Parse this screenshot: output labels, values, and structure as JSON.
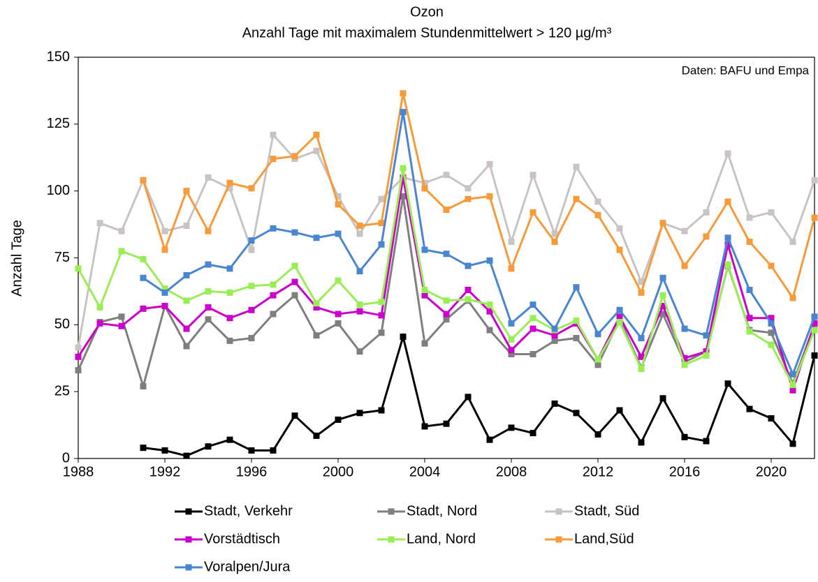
{
  "chart_data": {
    "type": "line",
    "title": "Ozon",
    "subtitle": "Anzahl Tage mit maximalem Stundenmittelwert > 120 µg/m³",
    "y_label": "Anzahl Tage",
    "annotation": "Daten: BAFU und Empa",
    "x": [
      1988,
      1989,
      1990,
      1991,
      1992,
      1993,
      1994,
      1995,
      1996,
      1997,
      1998,
      1999,
      2000,
      2001,
      2002,
      2003,
      2004,
      2005,
      2006,
      2007,
      2008,
      2009,
      2010,
      2011,
      2012,
      2013,
      2014,
      2015,
      2016,
      2017,
      2018,
      2019,
      2020,
      2021,
      2022
    ],
    "xlim": [
      1988,
      2022
    ],
    "xticks": [
      1988,
      1992,
      1996,
      2000,
      2004,
      2008,
      2012,
      2016,
      2020
    ],
    "ylim": [
      0,
      150
    ],
    "yticks": [
      0,
      25,
      50,
      75,
      100,
      125,
      150
    ],
    "grid": false,
    "legend": "bottom",
    "series": [
      {
        "name": "Stadt, Verkehr",
        "color": "#000000",
        "values": [
          null,
          null,
          null,
          4,
          3,
          1,
          4.5,
          7,
          3,
          3,
          16,
          8.5,
          14.5,
          17,
          18,
          45.5,
          12,
          13,
          23,
          7,
          11.5,
          9.5,
          20.5,
          17,
          9,
          18,
          6,
          22.5,
          8,
          6.5,
          28,
          18.5,
          15,
          5.5,
          38.5
        ]
      },
      {
        "name": "Stadt, Nord",
        "color": "#7f7f7f",
        "values": [
          33,
          51,
          53,
          27,
          57,
          42,
          52,
          44,
          45,
          54,
          61,
          46,
          50.5,
          40,
          47,
          98,
          43,
          52,
          59,
          48,
          39,
          39,
          44,
          45,
          35,
          52,
          34,
          54,
          36,
          40,
          72,
          48,
          47,
          28,
          50
        ]
      },
      {
        "name": "Stadt, Süd",
        "color": "#c9c3c3",
        "values": [
          41.5,
          88,
          85,
          104,
          85,
          87,
          105,
          101,
          78,
          121,
          112,
          115,
          98,
          84,
          97,
          105,
          103,
          106,
          101,
          110,
          81,
          106,
          84,
          109,
          96,
          86,
          66,
          88,
          85,
          92,
          114,
          90,
          92,
          81,
          104
        ]
      },
      {
        "name": "Vorstädtisch",
        "color": "#cc00cc",
        "values": [
          38,
          50.5,
          49.5,
          56,
          57,
          48.5,
          56.5,
          52.5,
          55.5,
          61,
          66,
          56.5,
          54,
          55,
          53.5,
          105,
          61,
          54,
          63,
          55,
          40.5,
          48.5,
          46,
          50.5,
          37,
          53,
          38,
          57,
          37.5,
          40,
          80,
          52.5,
          52.5,
          25.5,
          50.5
        ]
      },
      {
        "name": "Land, Nord",
        "color": "#99ee55",
        "values": [
          71,
          56.5,
          77.5,
          74.5,
          63.5,
          59,
          62.5,
          62,
          64.5,
          65,
          72,
          58,
          66.5,
          57.5,
          58.5,
          108.5,
          63,
          59,
          59.5,
          57.5,
          44.5,
          52.5,
          48,
          51.5,
          37,
          51,
          33.5,
          61,
          35,
          38.5,
          72.5,
          47.5,
          42.5,
          27.5,
          48
        ]
      },
      {
        "name": "Land,Süd",
        "color": "#f79a3a",
        "values": [
          null,
          null,
          null,
          104,
          78,
          100,
          85,
          103,
          101,
          112,
          113,
          121,
          95,
          87,
          88,
          136.5,
          101,
          93,
          97,
          98,
          71,
          92,
          81,
          97,
          91,
          78,
          62,
          88,
          72,
          83,
          96,
          81,
          72,
          60,
          90
        ]
      },
      {
        "name": "Voralpen/Jura",
        "color": "#4a86d0",
        "values": [
          null,
          null,
          null,
          67.5,
          62,
          68.5,
          72.5,
          71,
          81.5,
          86,
          84.5,
          82.5,
          84,
          70,
          80,
          129.5,
          78,
          76.5,
          72,
          74,
          50.5,
          57.5,
          48.5,
          64,
          46.5,
          55.5,
          45,
          67.5,
          48.5,
          46,
          82.5,
          63,
          50.5,
          31.5,
          53
        ]
      }
    ]
  }
}
